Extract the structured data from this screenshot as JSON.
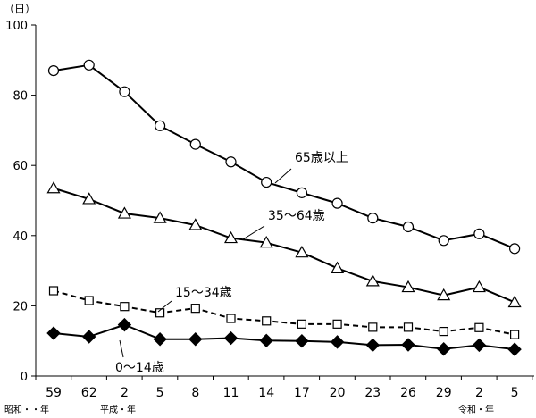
{
  "chart_data": {
    "type": "line",
    "unit_label": "（日）",
    "categories": [
      "59",
      "62",
      "2",
      "5",
      "8",
      "11",
      "14",
      "17",
      "20",
      "23",
      "26",
      "29",
      "2",
      "5"
    ],
    "era_labels": [
      "昭和・・年",
      "平成・年",
      "令和・年"
    ],
    "ylim": [
      0,
      100
    ],
    "yticks": [
      0,
      20,
      40,
      60,
      80,
      100
    ],
    "series": [
      {
        "name": "65歳以上",
        "marker": "circle",
        "dashed": false,
        "values": [
          87.0,
          88.6,
          81.0,
          71.3,
          66.0,
          61.0,
          55.2,
          52.2,
          49.2,
          45.0,
          42.5,
          38.6,
          40.5,
          36.3
        ]
      },
      {
        "name": "35～64歳",
        "marker": "triangle",
        "dashed": false,
        "values": [
          53.5,
          50.4,
          46.3,
          45.0,
          43.0,
          39.3,
          38.0,
          35.2,
          30.7,
          27.0,
          25.3,
          23.0,
          25.3,
          21.0
        ]
      },
      {
        "name": "15～34歳",
        "marker": "square",
        "dashed": true,
        "values": [
          24.3,
          21.5,
          19.8,
          18.0,
          19.3,
          16.4,
          15.7,
          14.8,
          14.8,
          13.9,
          13.9,
          12.7,
          13.8,
          11.8
        ]
      },
      {
        "name": "0～14歳",
        "marker": "diamond",
        "dashed": false,
        "values": [
          12.2,
          11.2,
          14.6,
          10.5,
          10.5,
          10.8,
          10.1,
          10.0,
          9.7,
          8.8,
          8.9,
          7.7,
          8.8,
          7.6
        ]
      }
    ]
  }
}
